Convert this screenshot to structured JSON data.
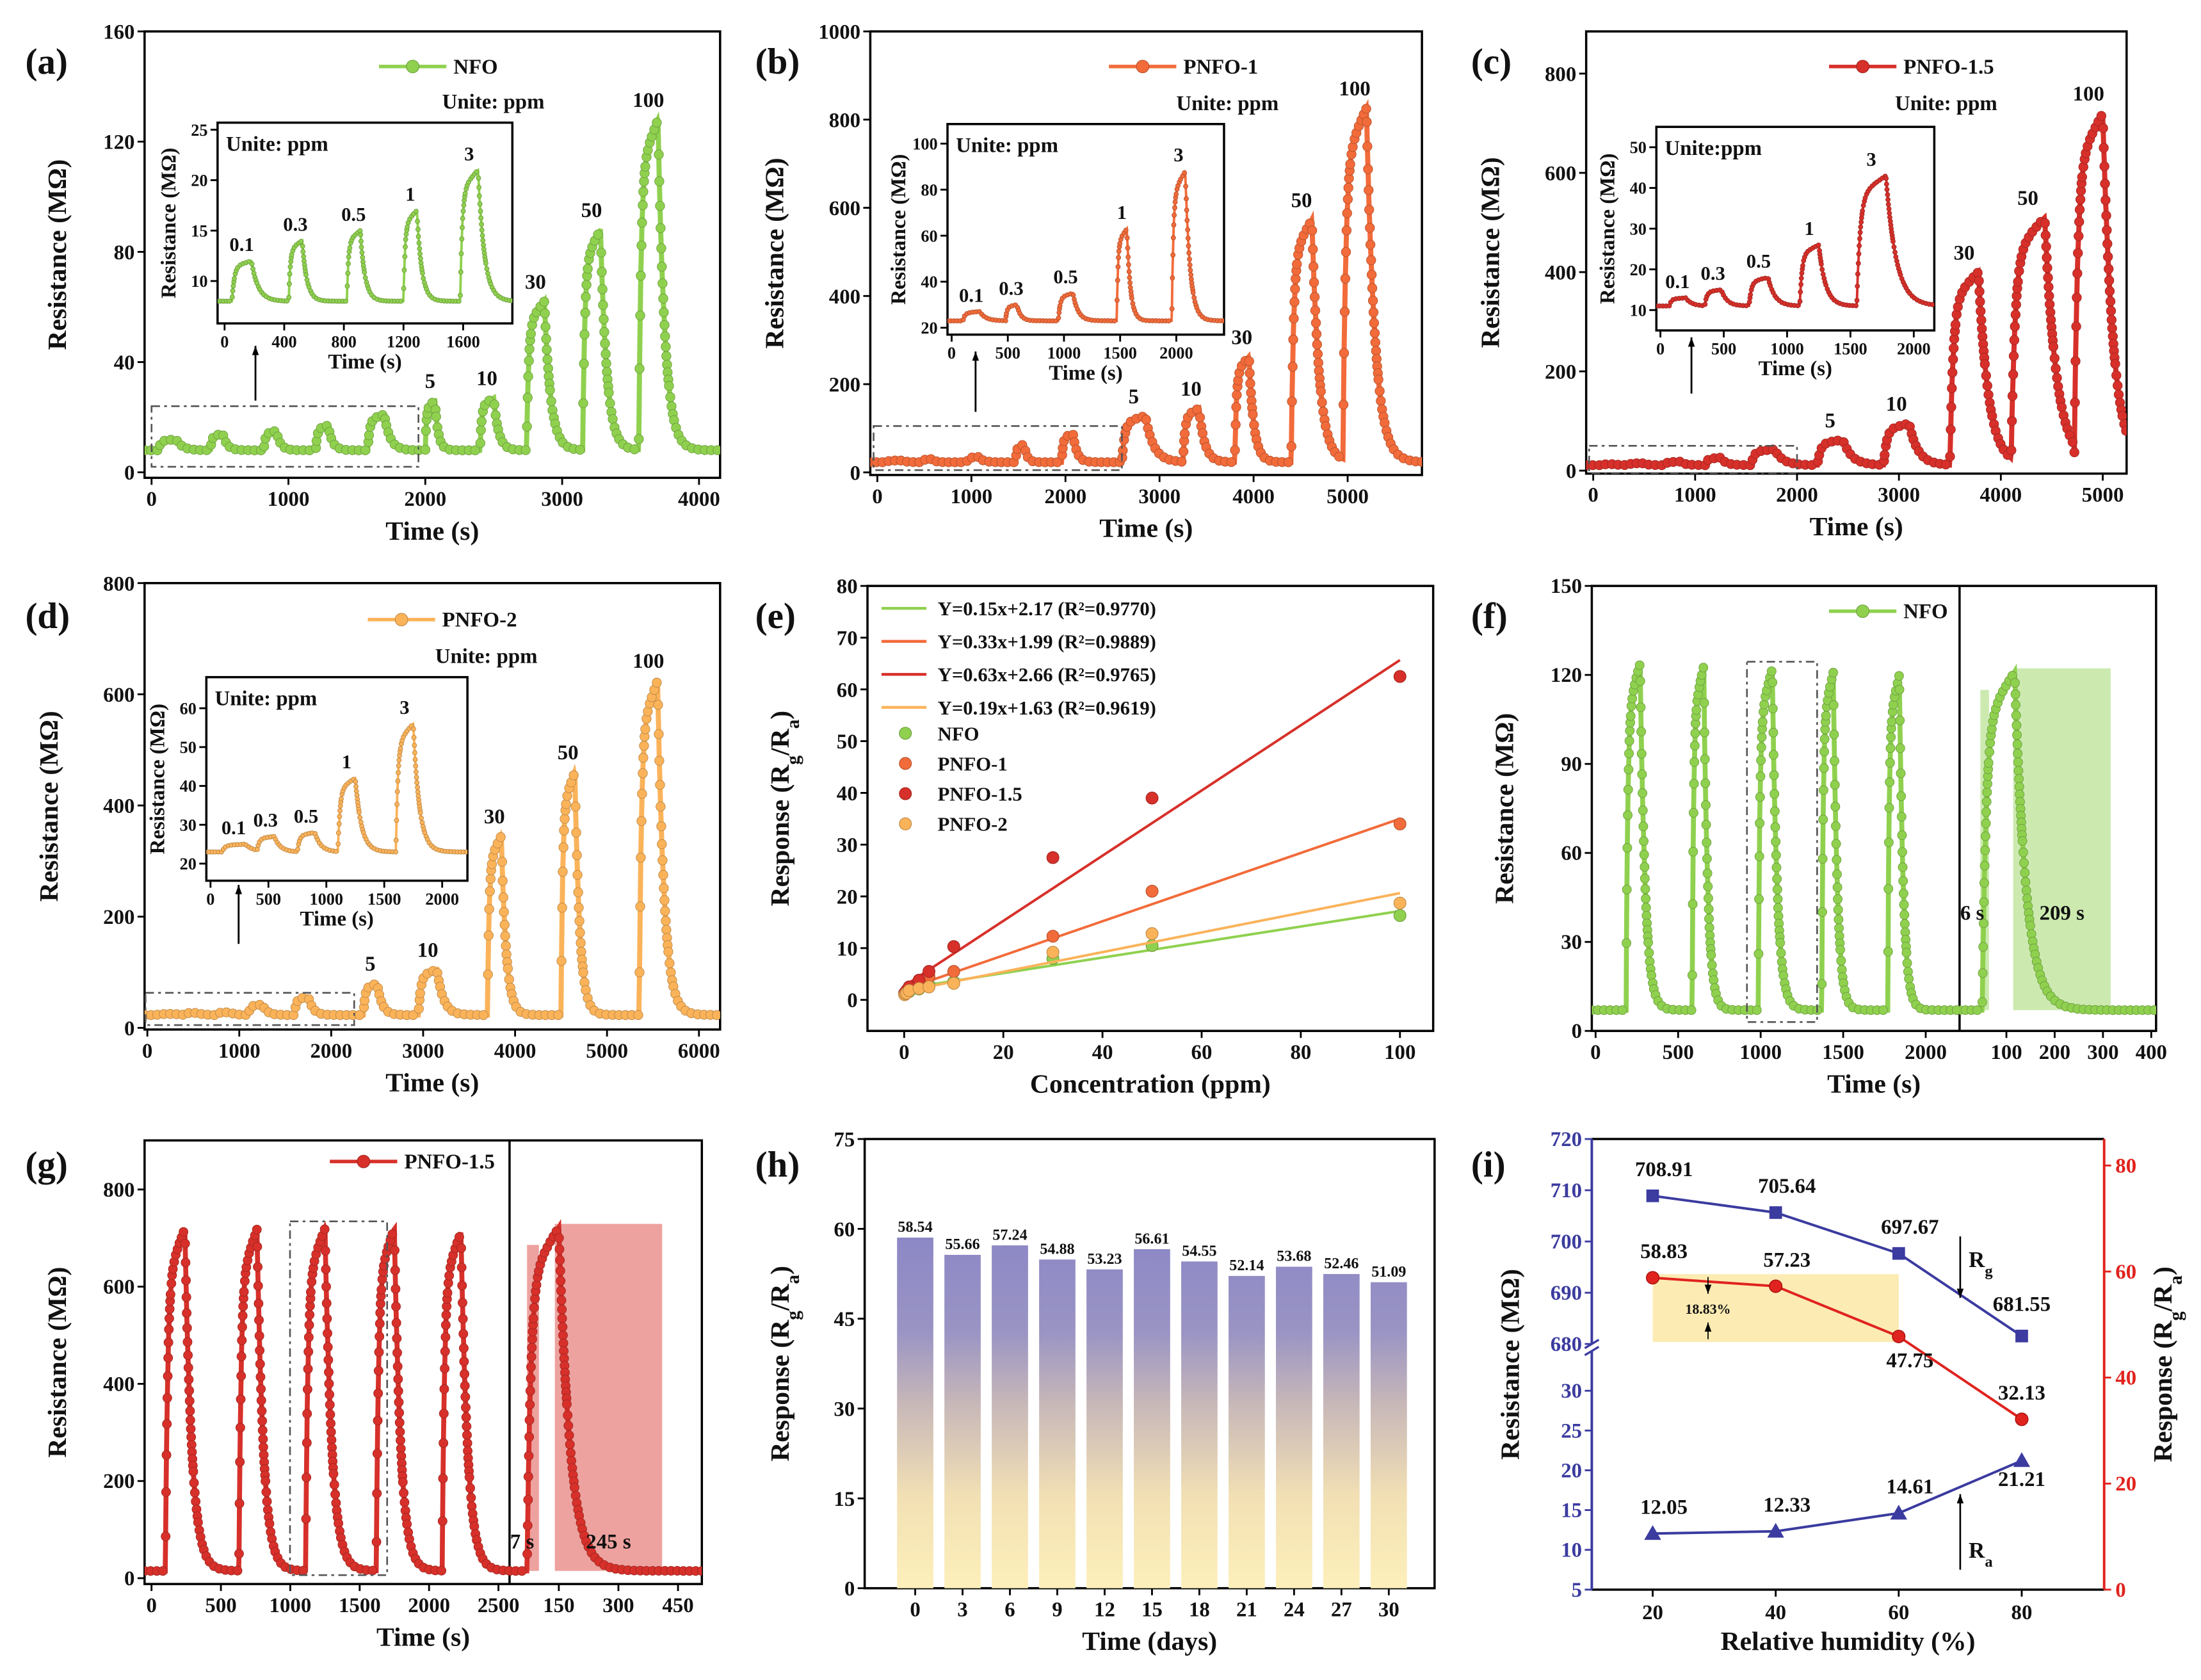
{
  "chart_data": [
    {
      "panel": "(a)",
      "type": "line",
      "series_name": "NFO",
      "color": "#8fd14f",
      "unit_note": "Unite: ppm",
      "xlabel": "Time (s)",
      "ylabel": "Resistance (MΩ)",
      "xlim": [
        -51,
        4154
      ],
      "ylim": [
        -2,
        160
      ],
      "xticks": [
        0,
        1000,
        2000,
        3000,
        4000
      ],
      "yticks": [
        0,
        40,
        80,
        120,
        160
      ],
      "baseline": 8,
      "pulses": [
        {
          "conc": "0.1",
          "on": 50,
          "off": 180,
          "peak": 12
        },
        {
          "conc": "0.3",
          "on": 430,
          "off": 520,
          "peak": 14
        },
        {
          "conc": "0.5",
          "on": 820,
          "off": 910,
          "peak": 15
        },
        {
          "conc": "1",
          "on": 1200,
          "off": 1290,
          "peak": 17
        },
        {
          "conc": "3",
          "on": 1580,
          "off": 1700,
          "peak": 21
        },
        {
          "conc": "5",
          "on": 2000,
          "off": 2070,
          "peak": 26
        },
        {
          "conc": "10",
          "on": 2400,
          "off": 2500,
          "peak": 27
        },
        {
          "conc": "30",
          "on": 2740,
          "off": 2870,
          "peak": 62
        },
        {
          "conc": "50",
          "on": 3150,
          "off": 3280,
          "peak": 88
        },
        {
          "conc": "100",
          "on": 3560,
          "off": 3700,
          "peak": 128
        }
      ],
      "inset": {
        "title": "Unite: ppm",
        "xlabel": "Time (s)",
        "ylabel": "Resistance (MΩ)",
        "labels": [
          "0.1",
          "0.3",
          "0.5",
          "1",
          "3"
        ],
        "xlim": [
          -47,
          1930
        ],
        "ylim": [
          5.8,
          25.7
        ],
        "xticks": [
          0,
          400,
          800,
          1200,
          1600
        ],
        "yticks": [
          10,
          15,
          20,
          25
        ]
      }
    },
    {
      "panel": "(b)",
      "type": "line",
      "series_name": "PNFO-1",
      "color": "#f26b3a",
      "unit_note": "Unite: ppm",
      "xlabel": "Time (s)",
      "ylabel": "Resistance (MΩ)",
      "xlim": [
        -75,
        5790
      ],
      "ylim": [
        -6,
        1000
      ],
      "xticks": [
        0,
        1000,
        2000,
        3000,
        4000,
        5000
      ],
      "yticks": [
        0,
        200,
        400,
        600,
        800,
        1000
      ],
      "baseline": 23,
      "pulses": [
        {
          "conc": "0.1",
          "on": 100,
          "off": 250,
          "peak": 27
        },
        {
          "conc": "0.3",
          "on": 480,
          "off": 580,
          "peak": 30
        },
        {
          "conc": "0.5",
          "on": 950,
          "off": 1080,
          "peak": 35
        },
        {
          "conc": "1",
          "on": 1470,
          "off": 1560,
          "peak": 63
        },
        {
          "conc": "3",
          "on": 1960,
          "off": 2080,
          "peak": 88
        },
        {
          "conc": "5",
          "on": 2600,
          "off": 2850,
          "peak": 128
        },
        {
          "conc": "10",
          "on": 3250,
          "off": 3420,
          "peak": 145
        },
        {
          "conc": "30",
          "on": 3800,
          "off": 3950,
          "peak": 262
        },
        {
          "conc": "50",
          "on": 4400,
          "off": 4620,
          "peak": 573
        },
        {
          "conc": "100",
          "on": 4950,
          "off": 5200,
          "peak": 826
        }
      ],
      "inset": {
        "title": "Unite: ppm",
        "xlabel": "Time (s)",
        "ylabel": "Resistance (MΩ)",
        "labels": [
          "0.1",
          "0.3",
          "0.5",
          "1",
          "3"
        ],
        "xlim": [
          -37,
          2425
        ],
        "ylim": [
          17,
          108.5
        ],
        "xticks": [
          0,
          500,
          1000,
          1500,
          2000
        ],
        "yticks": [
          20,
          40,
          60,
          80,
          100
        ]
      }
    },
    {
      "panel": "(c)",
      "type": "line",
      "series_name": "PNFO-1.5",
      "color": "#d7302a",
      "unit_note": "Unite: ppm",
      "xlabel": "Time (s)",
      "ylabel": "Resistance (MΩ)",
      "xlim": [
        -69,
        5234
      ],
      "ylim": [
        -6,
        885
      ],
      "xticks": [
        0,
        1000,
        2000,
        3000,
        4000,
        5000
      ],
      "yticks": [
        0,
        200,
        400,
        600,
        800
      ],
      "baseline": 11,
      "pulses": [
        {
          "conc": "0.1",
          "on": 70,
          "off": 200,
          "peak": 13
        },
        {
          "conc": "0.3",
          "on": 350,
          "off": 480,
          "peak": 15
        },
        {
          "conc": "0.5",
          "on": 700,
          "off": 850,
          "peak": 18
        },
        {
          "conc": "1",
          "on": 1100,
          "off": 1250,
          "peak": 26
        },
        {
          "conc": "3",
          "on": 1550,
          "off": 1780,
          "peak": 43
        },
        {
          "conc": "5",
          "on": 2200,
          "off": 2450,
          "peak": 62
        },
        {
          "conc": "10",
          "on": 2850,
          "off": 3100,
          "peak": 95
        },
        {
          "conc": "30",
          "on": 3500,
          "off": 3780,
          "peak": 400
        },
        {
          "conc": "50",
          "on": 4100,
          "off": 4430,
          "peak": 510
        },
        {
          "conc": "100",
          "on": 4720,
          "off": 5000,
          "peak": 720
        }
      ],
      "inset": {
        "title": "Unite:ppm",
        "xlabel": "Time (s)",
        "ylabel": "Resistance (MΩ)",
        "labels": [
          "0.1",
          "0.3",
          "0.5",
          "1",
          "3"
        ],
        "xlim": [
          -32,
          2162
        ],
        "ylim": [
          5,
          55
        ],
        "xticks": [
          0,
          500,
          1000,
          1500,
          2000
        ],
        "yticks": [
          10,
          20,
          30,
          40,
          50
        ]
      }
    },
    {
      "panel": "(d)",
      "type": "line",
      "series_name": "PNFO-2",
      "color": "#fbb35a",
      "unit_note": "Unite: ppm",
      "xlabel": "Time (s)",
      "ylabel": "Resistance (MΩ)",
      "xlim": [
        -30,
        6230
      ],
      "ylim": [
        -3,
        800
      ],
      "xticks": [
        0,
        1000,
        2000,
        3000,
        4000,
        5000,
        6000
      ],
      "yticks": [
        0,
        200,
        400,
        600,
        800
      ],
      "baseline": 23,
      "pulses": [
        {
          "conc": "0.1",
          "on": 100,
          "off": 300,
          "peak": 25
        },
        {
          "conc": "0.3",
          "on": 400,
          "off": 550,
          "peak": 27
        },
        {
          "conc": "0.5",
          "on": 750,
          "off": 900,
          "peak": 28
        },
        {
          "conc": "1",
          "on": 1100,
          "off": 1250,
          "peak": 42
        },
        {
          "conc": "3",
          "on": 1600,
          "off": 1750,
          "peak": 56
        },
        {
          "conc": "5",
          "on": 2350,
          "off": 2500,
          "peak": 80
        },
        {
          "conc": "10",
          "on": 2950,
          "off": 3150,
          "peak": 105
        },
        {
          "conc": "30",
          "on": 3700,
          "off": 3850,
          "peak": 345
        },
        {
          "conc": "50",
          "on": 4500,
          "off": 4650,
          "peak": 460
        },
        {
          "conc": "100",
          "on": 5350,
          "off": 5550,
          "peak": 625
        }
      ],
      "inset": {
        "title": "Unite: ppm",
        "xlabel": "Time (s)",
        "ylabel": "Resistance (MΩ)",
        "labels": [
          "0.1",
          "0.3",
          "0.5",
          "1",
          "3"
        ],
        "xlim": [
          -36,
          2218
        ],
        "ylim": [
          15.6,
          68
        ],
        "xticks": [
          0,
          500,
          1000,
          1500,
          2000
        ],
        "yticks": [
          20,
          30,
          40,
          50,
          60
        ]
      }
    },
    {
      "panel": "(e)",
      "type": "scatter",
      "xlabel": "Concentration (ppm)",
      "ylabel": "Response (Rg/Ra)",
      "xlim": [
        -7.4,
        106.7
      ],
      "ylim": [
        -6,
        80
      ],
      "xticks": [
        0,
        20,
        40,
        60,
        80,
        100
      ],
      "yticks": [
        0,
        10,
        20,
        30,
        40,
        50,
        60,
        70,
        80
      ],
      "legend_position": "top-left",
      "x": [
        0.1,
        0.3,
        0.5,
        1,
        3,
        5,
        10,
        30,
        50,
        100
      ],
      "series": [
        {
          "name": "NFO",
          "color": "#8fd14f",
          "values": [
            1.1,
            1.3,
            1.4,
            1.6,
            2.1,
            2.9,
            3.5,
            8.0,
            10.5,
            16.3
          ],
          "fit": {
            "label": "Y=0.15x+2.17 (R²=0.9770)",
            "slope": 0.15,
            "intercept": 2.17
          }
        },
        {
          "name": "PNFO-1",
          "color": "#f26b3a",
          "values": [
            1.2,
            1.4,
            1.6,
            2.3,
            3.5,
            4.5,
            5.5,
            12.3,
            21.0,
            34.0
          ],
          "fit": {
            "label": "Y=0.33x+1.99 (R²=0.9889)",
            "slope": 0.33,
            "intercept": 1.99
          }
        },
        {
          "name": "PNFO-1.5",
          "color": "#d7302a",
          "values": [
            1.3,
            1.5,
            1.8,
            2.5,
            3.8,
            5.5,
            10.3,
            27.5,
            39.0,
            62.5
          ],
          "fit": {
            "label": "Y=0.63x+2.66 (R²=0.9765)",
            "slope": 0.63,
            "intercept": 2.66
          }
        },
        {
          "name": "PNFO-2",
          "color": "#fbb35a",
          "values": [
            1.0,
            1.2,
            1.3,
            1.8,
            2.2,
            2.5,
            3.2,
            9.2,
            12.8,
            18.7
          ],
          "fit": {
            "label": "Y=0.19x+1.63 (R²=0.9619)",
            "slope": 0.19,
            "intercept": 1.63
          }
        }
      ]
    },
    {
      "panel": "(f)",
      "type": "line",
      "series_name": "NFO",
      "color": "#8fd14f",
      "xlabel": "Time (s)",
      "ylabel": "Resistance (MΩ)",
      "ylim": [
        0,
        150
      ],
      "yticks": [
        0,
        30,
        60,
        90,
        120,
        150
      ],
      "left": {
        "xlim": [
          -23,
          2205
        ],
        "xticks": [
          0,
          500,
          1000,
          1500,
          2000
        ],
        "baseline": 7,
        "pulses": [
          {
            "on": 185,
            "off": 270,
            "peak": 124
          },
          {
            "on": 585,
            "off": 655,
            "peak": 123
          },
          {
            "on": 985,
            "off": 1070,
            "peak": 122
          },
          {
            "on": 1370,
            "off": 1440,
            "peak": 121
          },
          {
            "on": 1770,
            "off": 1840,
            "peak": 120
          }
        ]
      },
      "right": {
        "xlim": [
          3,
          410
        ],
        "xticks": [
          100,
          200,
          300,
          400
        ],
        "baseline": 7,
        "pulses": [
          {
            "on": 50,
            "off": 117,
            "peak": 121
          }
        ],
        "response_span": [
          46,
          64
        ],
        "recovery_span": [
          114,
          316
        ],
        "response_time_label": "6 s",
        "recovery_time_label": "209 s"
      }
    },
    {
      "panel": "(g)",
      "type": "line",
      "series_name": "PNFO-1.5",
      "color": "#d7302a",
      "xlabel": "Time (s)",
      "ylabel": "Resistance (MΩ)",
      "ylim": [
        -12,
        901
      ],
      "yticks": [
        0,
        200,
        400,
        600,
        800
      ],
      "left": {
        "xlim": [
          -50,
          2580
        ],
        "xticks": [
          0,
          500,
          1000,
          1500,
          2000,
          2500
        ],
        "baseline": 15,
        "pulses": [
          {
            "on": 100,
            "off": 240,
            "peak": 720
          },
          {
            "on": 630,
            "off": 760,
            "peak": 718
          },
          {
            "on": 1110,
            "off": 1250,
            "peak": 720
          },
          {
            "on": 1620,
            "off": 1750,
            "peak": 720
          },
          {
            "on": 2095,
            "off": 2230,
            "peak": 712
          }
        ]
      },
      "right": {
        "xlim": [
          26,
          510
        ],
        "xticks": [
          150,
          300,
          450
        ],
        "baseline": 15,
        "pulses": [
          {
            "on": 70,
            "off": 150,
            "peak": 722
          }
        ],
        "response_span": [
          70,
          100
        ],
        "recovery_span": [
          140,
          410
        ],
        "response_time_label": "7 s",
        "recovery_time_label": "245 s"
      }
    },
    {
      "panel": "(h)",
      "type": "bar",
      "xlabel": "Time (days)",
      "ylabel": "Response (Rg/Ra)",
      "xlim": [
        -3.2,
        32.9
      ],
      "ylim": [
        0,
        75
      ],
      "yticks": [
        0,
        15,
        30,
        45,
        60,
        75
      ],
      "categories": [
        0,
        3,
        6,
        9,
        12,
        15,
        18,
        21,
        24,
        27,
        30
      ],
      "values": [
        58.54,
        55.66,
        57.24,
        54.88,
        53.23,
        56.61,
        54.55,
        52.14,
        53.68,
        52.46,
        51.09
      ],
      "value_labels": [
        "58.54",
        "55.66",
        "57.24",
        "54.88",
        "53.23",
        "56.61",
        "54.55",
        "52.14",
        "53.68",
        "52.46",
        "51.09"
      ],
      "colors": {
        "top": "#8a86c6",
        "bottom": "#fdf0bb"
      }
    },
    {
      "panel": "(i)",
      "type": "line",
      "xlabel": "Relative humidity (%)",
      "ylabel_left": "Resistance (MΩ)",
      "ylabel_right": "Response (Rg/Ra)",
      "xlim": [
        10.1,
        93.4
      ],
      "xticks": [
        20,
        40,
        60,
        80
      ],
      "ylim_left_upper": [
        680,
        720
      ],
      "yticks_left_upper": [
        680,
        690,
        700,
        710,
        720
      ],
      "ylim_left_lower": [
        5,
        35
      ],
      "yticks_left_lower": [
        5,
        10,
        15,
        20,
        25,
        30
      ],
      "ylim_right": [
        0,
        85
      ],
      "yticks_right": [
        0,
        20,
        40,
        60,
        80
      ],
      "x": [
        20,
        40,
        60,
        80
      ],
      "series": [
        {
          "name": "Rg",
          "axis": "left",
          "marker": "square",
          "color": "#3b3ba0",
          "values": [
            708.91,
            705.64,
            697.67,
            681.55
          ],
          "labels": [
            "708.91",
            "705.64",
            "697.67",
            "681.55"
          ]
        },
        {
          "name": "Ra",
          "axis": "left",
          "marker": "triangle",
          "color": "#3b3ba0",
          "values": [
            12.05,
            12.33,
            14.61,
            21.21
          ],
          "labels": [
            "12.05",
            "12.33",
            "14.61",
            "21.21"
          ]
        },
        {
          "name": "Response",
          "axis": "right",
          "marker": "circle",
          "color": "#e0231e",
          "values": [
            58.83,
            57.23,
            47.75,
            32.13
          ],
          "labels": [
            "58.83",
            "57.23",
            "47.75",
            "32.13"
          ]
        }
      ],
      "highlight": {
        "x": [
          20,
          60
        ],
        "y": [
          46.7,
          59.5
        ],
        "label": "18.83%",
        "color": "#fbe7a6"
      },
      "left_color": "#3b3ba0",
      "right_color": "#e0231e"
    }
  ]
}
